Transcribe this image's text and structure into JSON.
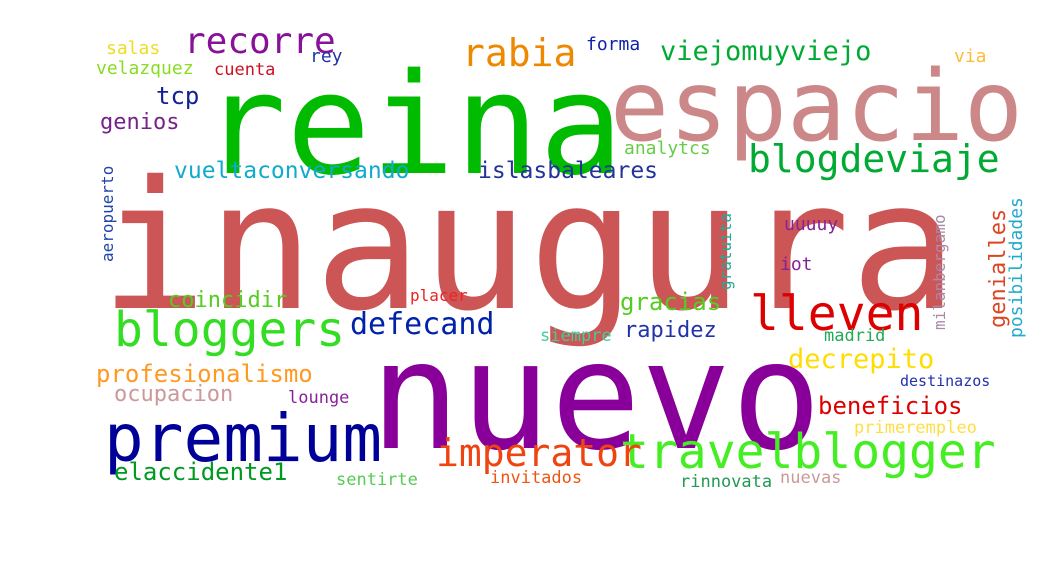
{
  "words": [
    {
      "text": "inaugura",
      "color": "#cc5555"
    },
    {
      "text": "nuevo",
      "color": "#880099"
    },
    {
      "text": "reina",
      "color": "#00bb00"
    },
    {
      "text": "espacio",
      "color": "#cc8888"
    },
    {
      "text": "premium",
      "color": "#000099"
    },
    {
      "text": "travelblogger",
      "color": "#44ee22"
    },
    {
      "text": "bloggers",
      "color": "#33dd22"
    },
    {
      "text": "blogdeviaje",
      "color": "#00aa33"
    },
    {
      "text": "lleven",
      "color": "#dd0000"
    },
    {
      "text": "imperator",
      "color": "#ee4411"
    },
    {
      "text": "recorre",
      "color": "#881199"
    },
    {
      "text": "rabia",
      "color": "#ee8800"
    },
    {
      "text": "viejomuyviejo",
      "color": "#00aa33"
    },
    {
      "text": "defecand",
      "color": "#0022aa"
    },
    {
      "text": "decrepito",
      "color": "#ffdd00"
    },
    {
      "text": "vueltaconversando",
      "color": "#11aacc"
    },
    {
      "text": "islasbaleares",
      "color": "#223399"
    },
    {
      "text": "profesionalismo",
      "color": "#ff9922"
    },
    {
      "text": "beneficios",
      "color": "#dd0000"
    },
    {
      "text": "elaccidente1",
      "color": "#009922"
    },
    {
      "text": "ocupacion",
      "color": "#cc9999"
    },
    {
      "text": "coincidir",
      "color": "#55cc22"
    },
    {
      "text": "gracias",
      "color": "#55cc22"
    },
    {
      "text": "rapidez",
      "color": "#2233aa"
    },
    {
      "text": "genios",
      "color": "#772288"
    },
    {
      "text": "tcp",
      "color": "#112299"
    },
    {
      "text": "genialles",
      "color": "#dd4422"
    },
    {
      "text": "posibilidades",
      "color": "#22aacc"
    },
    {
      "text": "aeropuerto",
      "color": "#2244aa"
    },
    {
      "text": "milanbergamo",
      "color": "#aa88aa"
    },
    {
      "text": "gratuita",
      "color": "#22aa99"
    },
    {
      "text": "forma",
      "color": "#1122aa"
    },
    {
      "text": "rey",
      "color": "#2233aa"
    },
    {
      "text": "salas",
      "color": "#eedd22"
    },
    {
      "text": "velazquez",
      "color": "#88dd22"
    },
    {
      "text": "cuenta",
      "color": "#cc1122"
    },
    {
      "text": "via",
      "color": "#ffbb33"
    },
    {
      "text": "analytcs",
      "color": "#66cc44"
    },
    {
      "text": "uuuuy",
      "color": "#882299"
    },
    {
      "text": "iot",
      "color": "#882299"
    },
    {
      "text": "placer",
      "color": "#ee2222"
    },
    {
      "text": "siempre",
      "color": "#44cc99"
    },
    {
      "text": "madrid",
      "color": "#22aa55"
    },
    {
      "text": "destinazos",
      "color": "#2233aa"
    },
    {
      "text": "lounge",
      "color": "#882299"
    },
    {
      "text": "primerempleo",
      "color": "#ffdd44"
    },
    {
      "text": "sentirte",
      "color": "#55cc55"
    },
    {
      "text": "invitados",
      "color": "#ee5511"
    },
    {
      "text": "rinnovata",
      "color": "#229955"
    },
    {
      "text": "nuevas",
      "color": "#cc9999"
    }
  ]
}
